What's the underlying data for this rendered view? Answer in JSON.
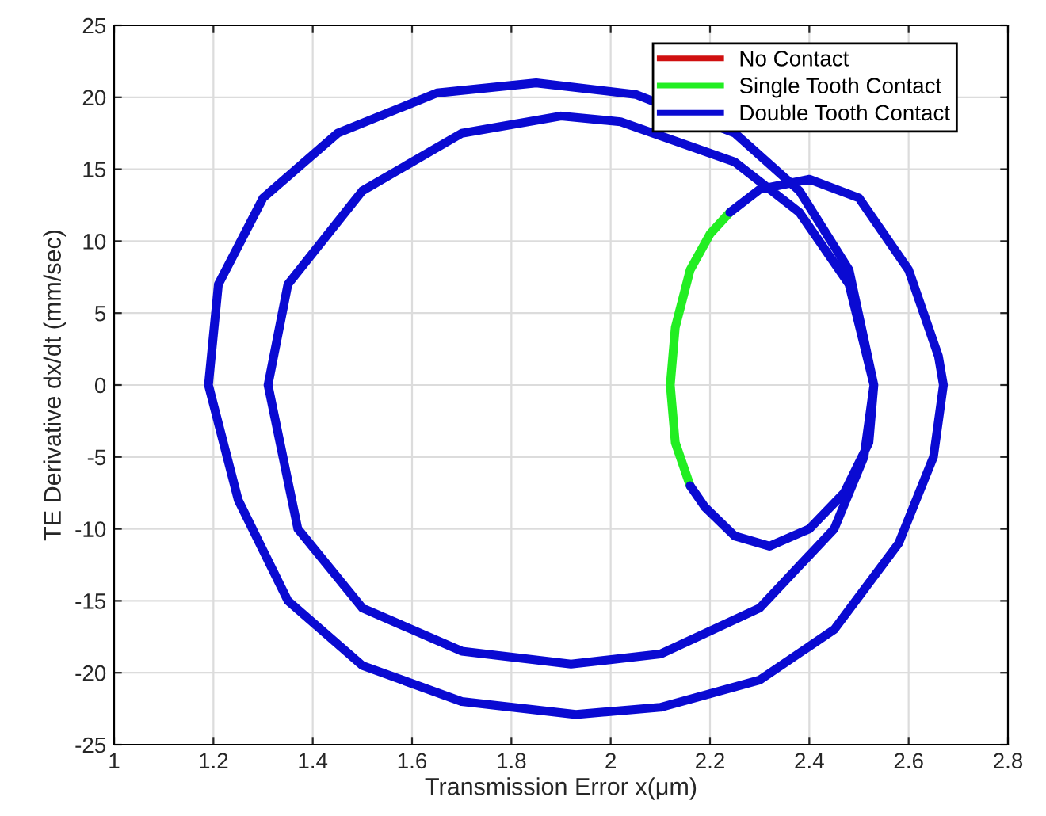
{
  "chart_data": {
    "type": "line",
    "xlabel": "Transmission Error x(μm)",
    "ylabel": "TE Derivative dx/dt (mm/sec)",
    "xlim": [
      1,
      2.8
    ],
    "xticks": [
      1,
      1.2,
      1.4,
      1.6,
      1.8,
      2,
      2.2,
      2.4,
      2.6,
      2.8
    ],
    "ylim": [
      -25,
      25
    ],
    "yticks": [
      -25,
      -20,
      -15,
      -10,
      -5,
      0,
      5,
      10,
      15,
      20,
      25
    ],
    "grid": true,
    "legend": "top right",
    "series": [
      {
        "name": "No Contact",
        "color": "#d01010"
      },
      {
        "name": "Single Tooth Contact",
        "color": "#22ee22",
        "x": [
          2.16,
          2.13,
          2.12,
          2.13,
          2.16,
          2.2,
          2.24
        ],
        "values": [
          -7,
          -4,
          0,
          4,
          8,
          10.5,
          12
        ]
      },
      {
        "name": "Double Tooth Contact",
        "color": "#0a0ad2",
        "x": [
          2.24,
          2.3,
          2.4,
          2.5,
          2.6,
          2.66,
          2.67,
          2.65,
          2.58,
          2.45,
          2.3,
          2.1,
          1.93,
          1.7,
          1.5,
          1.35,
          1.25,
          1.19,
          1.21,
          1.3,
          1.45,
          1.65,
          1.85,
          2.05,
          2.25,
          2.38,
          2.48,
          2.53,
          2.51,
          2.45,
          2.3,
          2.1,
          1.92,
          1.7,
          1.5,
          1.37,
          1.31,
          1.35,
          1.5,
          1.7,
          1.9,
          2.02,
          2.25,
          2.38,
          2.48,
          2.53,
          2.52,
          2.47,
          2.4,
          2.32,
          2.25,
          2.19,
          2.16
        ],
        "values": [
          12,
          13.6,
          14.3,
          13,
          8,
          2,
          0,
          -5,
          -11,
          -17,
          -20.5,
          -22.4,
          -22.9,
          -22,
          -19.5,
          -15,
          -8,
          0,
          7,
          13,
          17.5,
          20.3,
          21,
          20.2,
          17.5,
          13.5,
          8,
          0,
          -5,
          -10,
          -15.5,
          -18.7,
          -19.4,
          -18.5,
          -15.5,
          -10,
          0,
          7,
          13.5,
          17.5,
          18.7,
          18.3,
          15.5,
          12,
          7,
          0,
          -4,
          -7.5,
          -10,
          -11.2,
          -10.5,
          -8.5,
          -7
        ]
      }
    ]
  }
}
